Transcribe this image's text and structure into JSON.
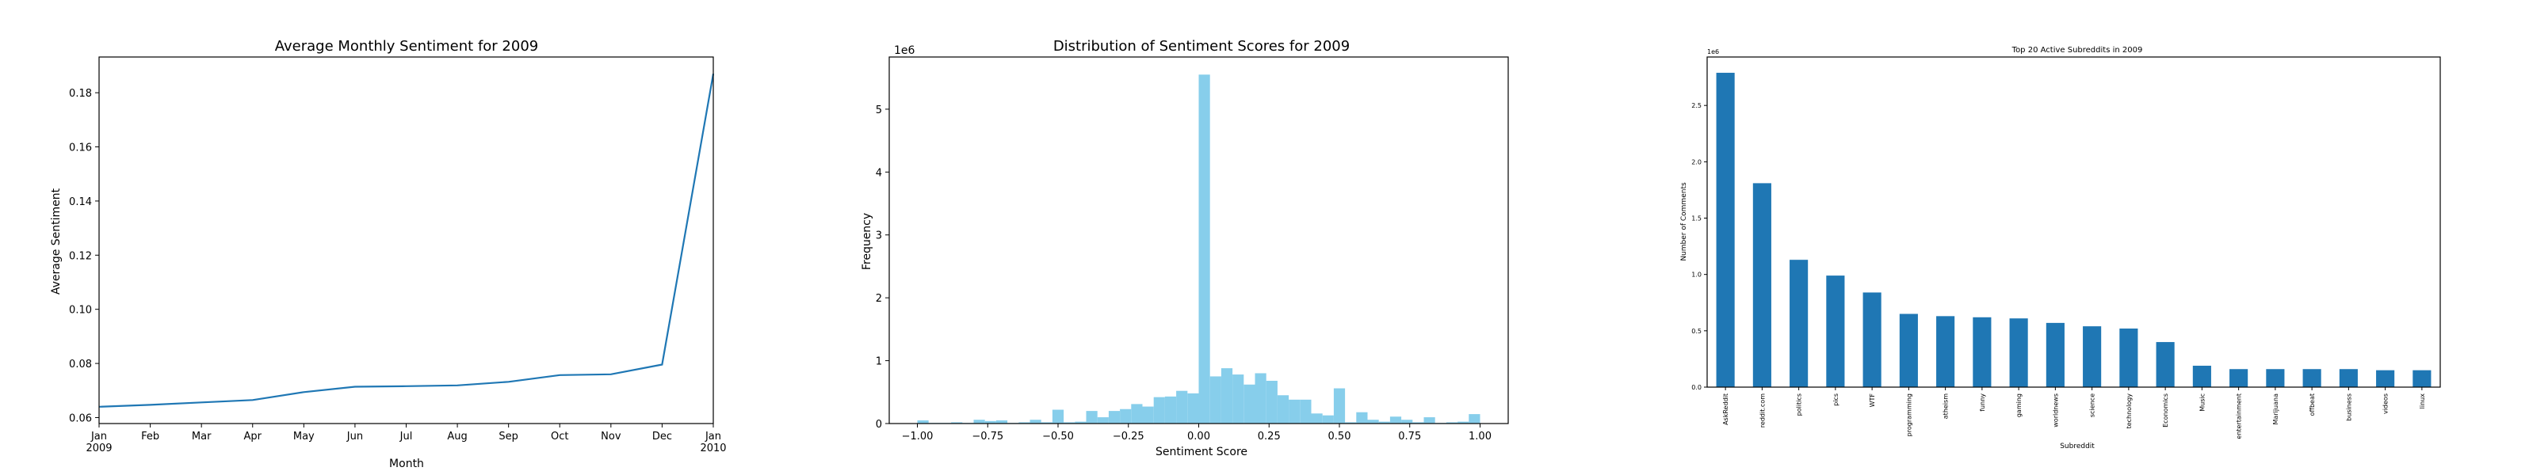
{
  "chart_data": [
    {
      "type": "line",
      "title": "Average Monthly Sentiment for 2009",
      "xlabel": "Month",
      "ylabel": "Average Sentiment",
      "x_tick_labels": [
        [
          "Jan",
          "2009"
        ],
        [
          "Feb"
        ],
        [
          "Mar"
        ],
        [
          "Apr"
        ],
        [
          "May"
        ],
        [
          "Jun"
        ],
        [
          "Jul"
        ],
        [
          "Aug"
        ],
        [
          "Sep"
        ],
        [
          "Oct"
        ],
        [
          "Nov"
        ],
        [
          "Dec"
        ],
        [
          "Jan",
          "2010"
        ]
      ],
      "series": [
        {
          "values": [
            0.064,
            0.0647,
            0.0656,
            0.0665,
            0.0694,
            0.0714,
            0.0716,
            0.0719,
            0.0732,
            0.0757,
            0.076,
            0.0796,
            0.187
          ]
        }
      ],
      "y_ticks": [
        0.06,
        0.08,
        0.1,
        0.12,
        0.14,
        0.16,
        0.18
      ],
      "ylim": [
        0.0578,
        0.1932
      ],
      "color": "#1f77b4"
    },
    {
      "type": "bar",
      "title": "Distribution of Sentiment Scores for 2009",
      "xlabel": "Sentiment Score",
      "ylabel": "Frequency",
      "y_offset_label": "1e6",
      "bin_width": 0.04,
      "bin_starts": [
        -1.0,
        -0.96,
        -0.92,
        -0.88,
        -0.84,
        -0.8,
        -0.76,
        -0.72,
        -0.68,
        -0.64,
        -0.6,
        -0.56,
        -0.52,
        -0.48,
        -0.44,
        -0.4,
        -0.36,
        -0.32,
        -0.28,
        -0.24,
        -0.2,
        -0.16,
        -0.12,
        -0.08,
        -0.04,
        0.0,
        0.04,
        0.08,
        0.12,
        0.16,
        0.2,
        0.24,
        0.28,
        0.32,
        0.36,
        0.4,
        0.44,
        0.48,
        0.52,
        0.56,
        0.6,
        0.64,
        0.68,
        0.72,
        0.76,
        0.8,
        0.84,
        0.88,
        0.92,
        0.96
      ],
      "values": [
        0.05,
        0.01,
        0.01,
        0.02,
        0.01,
        0.06,
        0.04,
        0.05,
        0.01,
        0.02,
        0.06,
        0.02,
        0.22,
        0.02,
        0.03,
        0.2,
        0.1,
        0.2,
        0.23,
        0.31,
        0.27,
        0.42,
        0.43,
        0.52,
        0.48,
        5.55,
        0.75,
        0.88,
        0.78,
        0.62,
        0.8,
        0.68,
        0.45,
        0.38,
        0.38,
        0.16,
        0.13,
        0.56,
        0.02,
        0.18,
        0.06,
        0.03,
        0.11,
        0.06,
        0.02,
        0.1,
        0.01,
        0.02,
        0.03,
        0.15
      ],
      "x_ticks": [
        -1.0,
        -0.75,
        -0.5,
        -0.25,
        0.0,
        0.25,
        0.5,
        0.75,
        1.0
      ],
      "x_tick_labels": [
        "−1.00",
        "−0.75",
        "−0.50",
        "−0.25",
        "0.00",
        "0.25",
        "0.50",
        "0.75",
        "1.00"
      ],
      "y_ticks": [
        0,
        1,
        2,
        3,
        4,
        5
      ],
      "xlim": [
        -1.1,
        1.1
      ],
      "ylim": [
        0,
        5.83
      ],
      "color": "#87ceeb"
    },
    {
      "type": "bar",
      "title": "Top 20 Active Subreddits in 2009",
      "xlabel": "Subreddit",
      "ylabel": "Number of Comments",
      "y_offset_label": "1e6",
      "categories": [
        "AskReddit",
        "reddit.com",
        "politics",
        "pics",
        "WTF",
        "programming",
        "atheism",
        "funny",
        "gaming",
        "worldnews",
        "science",
        "technology",
        "Economics",
        "Music",
        "entertainment",
        "Marijuana",
        "offbeat",
        "business",
        "videos",
        "linux"
      ],
      "values": [
        2.79,
        1.81,
        1.13,
        0.99,
        0.84,
        0.65,
        0.63,
        0.62,
        0.61,
        0.57,
        0.54,
        0.52,
        0.4,
        0.19,
        0.16,
        0.16,
        0.16,
        0.16,
        0.15,
        0.15
      ],
      "y_ticks": [
        0,
        0.5,
        1.0,
        1.5,
        2.0,
        2.5
      ],
      "y_tick_labels": [
        "0.0",
        "0.5",
        "1.0",
        "1.5",
        "2.0",
        "2.5"
      ],
      "ylim": [
        0,
        2.93
      ],
      "color": "#1f77b4"
    }
  ]
}
